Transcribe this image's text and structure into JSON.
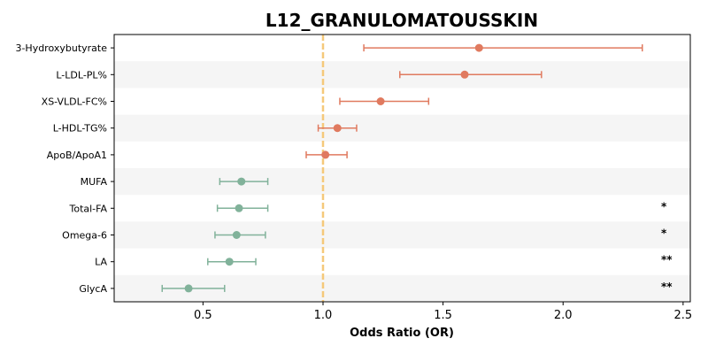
{
  "chart_data": {
    "type": "forest",
    "title": "L12_GRANULOMATOUSSKIN",
    "xlabel": "Odds Ratio (OR)",
    "ylabel": "",
    "xlim": [
      0.13,
      2.53
    ],
    "xticks": [
      0.5,
      1.0,
      1.5,
      2.0,
      2.5
    ],
    "xtick_labels": [
      "0.5",
      "1.0",
      "1.5",
      "2.0",
      "2.5"
    ],
    "reference_line": 1.0,
    "reference_color": "#f5c97a",
    "colors": {
      "increased": "#e07a5f",
      "decreased": "#81b29a",
      "stripe": "#f5f5f5"
    },
    "grid": false,
    "rows": [
      {
        "label": "3-Hydroxybutyrate",
        "or": 1.65,
        "lo": 1.17,
        "hi": 2.33,
        "sig": ""
      },
      {
        "label": "L-LDL-PL%",
        "or": 1.59,
        "lo": 1.32,
        "hi": 1.91,
        "sig": ""
      },
      {
        "label": "XS-VLDL-FC%",
        "or": 1.24,
        "lo": 1.07,
        "hi": 1.44,
        "sig": ""
      },
      {
        "label": "L-HDL-TG%",
        "or": 1.06,
        "lo": 0.98,
        "hi": 1.14,
        "sig": ""
      },
      {
        "label": "ApoB/ApoA1",
        "or": 1.01,
        "lo": 0.93,
        "hi": 1.1,
        "sig": ""
      },
      {
        "label": "MUFA",
        "or": 0.66,
        "lo": 0.57,
        "hi": 0.77,
        "sig": ""
      },
      {
        "label": "Total-FA",
        "or": 0.65,
        "lo": 0.56,
        "hi": 0.77,
        "sig": "*"
      },
      {
        "label": "Omega-6",
        "or": 0.64,
        "lo": 0.55,
        "hi": 0.76,
        "sig": "*"
      },
      {
        "label": "LA",
        "or": 0.61,
        "lo": 0.52,
        "hi": 0.72,
        "sig": "**"
      },
      {
        "label": "GlycA",
        "or": 0.44,
        "lo": 0.33,
        "hi": 0.59,
        "sig": "**"
      }
    ]
  }
}
